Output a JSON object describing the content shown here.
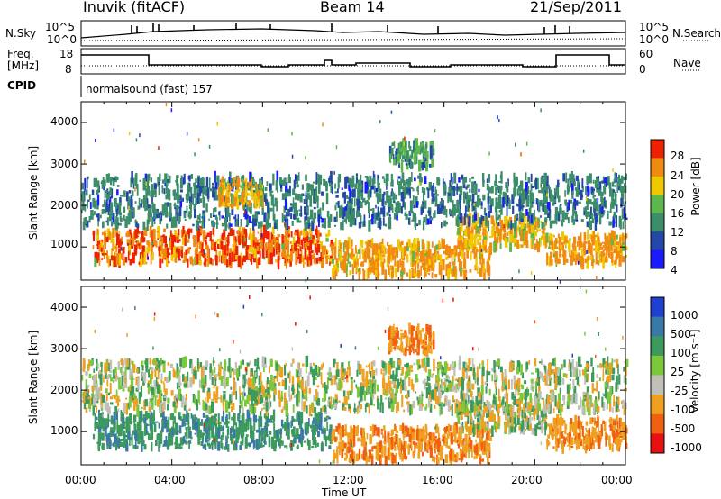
{
  "header": {
    "station": "Inuvik (fitACF)",
    "beam": "Beam 14",
    "date": "21/Sep/2011"
  },
  "aux": {
    "nsky_label": "N.Sky",
    "nsky_ticks": [
      "10^5",
      "10^0"
    ],
    "nsearch_label": "N.Search",
    "nsearch_ticks": [
      "10^5",
      "10^0"
    ],
    "freq_label_1": "Freq.",
    "freq_label_2": "[MHz]",
    "freq_ticks": [
      "18",
      "8"
    ],
    "nave_label": "Nave",
    "nave_ticks": [
      "60",
      "0"
    ],
    "cpid_label": "CPID",
    "cpid_value": "normalsound (fast) 157"
  },
  "chart_data": [
    {
      "type": "heatmap",
      "parameter": "power",
      "ylabel": "Slant Range [km]",
      "ylim": [
        200,
        4500
      ],
      "yticks": [
        "1000",
        "2000",
        "3000",
        "4000"
      ],
      "colorbar_label": "Power [dB]",
      "colorbar_ticks": [
        "4",
        "8",
        "12",
        "16",
        "20",
        "24",
        "28"
      ],
      "colorbar_colors": [
        "#1a1aff",
        "#2448a8",
        "#3c8e6a",
        "#5cb84a",
        "#f0c800",
        "#f08a10",
        "#ee2200"
      ],
      "echo_bands": [
        {
          "t0": 0.5,
          "t1": 11.0,
          "r0": 600,
          "r1": 1400,
          "level": 28
        },
        {
          "t0": 11.0,
          "t1": 18.0,
          "r0": 300,
          "r1": 1100,
          "level": 26
        },
        {
          "t0": 16.5,
          "t1": 20.5,
          "r0": 1000,
          "r1": 1700,
          "level": 24
        },
        {
          "t0": 20.5,
          "t1": 24.0,
          "r0": 600,
          "r1": 1300,
          "level": 26
        },
        {
          "t0": 0.0,
          "t1": 24.0,
          "r0": 1500,
          "r1": 2700,
          "level": 14
        },
        {
          "t0": 6.0,
          "t1": 8.0,
          "r0": 2000,
          "r1": 2600,
          "level": 26
        },
        {
          "t0": 13.5,
          "t1": 15.5,
          "r0": 2900,
          "r1": 3500,
          "level": 16
        }
      ]
    },
    {
      "type": "heatmap",
      "parameter": "velocity",
      "xlabel": "Time UT",
      "xticks": [
        "00:00",
        "04:00",
        "08:00",
        "12:00",
        "16:00",
        "20:00",
        "00:00"
      ],
      "ylabel": "Slant Range [km]",
      "ylim": [
        200,
        4500
      ],
      "yticks": [
        "1000",
        "2000",
        "3000",
        "4000"
      ],
      "colorbar_label": "Velocity [m s⁻¹]",
      "colorbar_ticks": [
        "1000",
        "500",
        "100",
        "25",
        "-25",
        "-100",
        "-500",
        "-1000"
      ],
      "colorbar_colors": [
        "#2040d0",
        "#3a78a8",
        "#3c9a5c",
        "#7cc83c",
        "#c0c0b8",
        "#f0a020",
        "#f06010",
        "#e81010"
      ],
      "echo_bands": [
        {
          "t0": 0.5,
          "t1": 11.0,
          "r0": 600,
          "r1": 1400,
          "level": 250
        },
        {
          "t0": 11.0,
          "t1": 18.0,
          "r0": 300,
          "r1": 1100,
          "level": -250
        },
        {
          "t0": 16.5,
          "t1": 20.5,
          "r0": 1000,
          "r1": 1700,
          "level": 0
        },
        {
          "t0": 20.5,
          "t1": 24.0,
          "r0": 600,
          "r1": 1300,
          "level": -250
        },
        {
          "t0": 0.0,
          "t1": 24.0,
          "r0": 1500,
          "r1": 2700,
          "level": 0
        },
        {
          "t0": 13.5,
          "t1": 15.5,
          "r0": 2900,
          "r1": 3500,
          "level": -300
        }
      ]
    }
  ]
}
